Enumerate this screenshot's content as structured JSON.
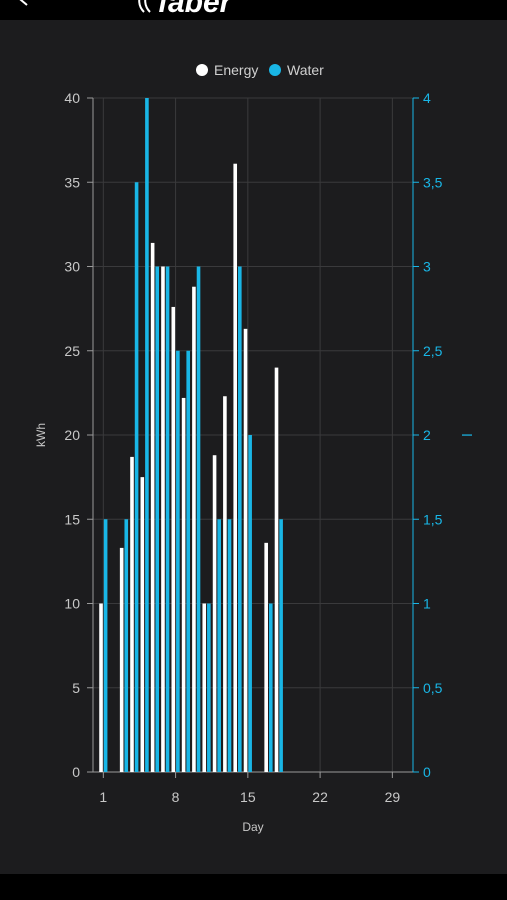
{
  "header": {
    "brand_logo_text": "faber",
    "back_icon": "chevron-left-icon"
  },
  "colors": {
    "background": "#1c1c1e",
    "energy": "#ffffff",
    "water": "#19b6e6",
    "axis_text": "#c8c8c8",
    "grid": "#3a3a3c"
  },
  "chart_data": {
    "type": "bar",
    "legend": {
      "position": "top-center",
      "entries": [
        "Energy",
        "Water"
      ]
    },
    "xlabel": "Day",
    "ylabel_left": "kWh",
    "ylabel_right": "l",
    "x_ticks": [
      "1",
      "8",
      "15",
      "22",
      "29"
    ],
    "y_left_ticks": [
      "0",
      "5",
      "10",
      "15",
      "20",
      "25",
      "30",
      "35",
      "40"
    ],
    "y_right_ticks": [
      "0",
      "0,5",
      "1",
      "1,5",
      "2",
      "2,5",
      "3",
      "3,5",
      "4"
    ],
    "xlim": [
      0,
      31
    ],
    "ylim_left": [
      0,
      40
    ],
    "ylim_right": [
      0,
      4
    ],
    "grid": true,
    "days": [
      1,
      2,
      3,
      4,
      5,
      6,
      7,
      8,
      9,
      10,
      11,
      12,
      13,
      14,
      15,
      16,
      17,
      18,
      19
    ],
    "series": [
      {
        "name": "Energy",
        "axis": "left",
        "values": [
          10,
          0,
          13.3,
          18.7,
          17.5,
          31.4,
          30,
          27.6,
          22.2,
          28.8,
          10,
          18.8,
          22.3,
          36.1,
          26.3,
          0,
          13.6,
          24,
          0
        ]
      },
      {
        "name": "Water",
        "axis": "right",
        "values": [
          1.5,
          0,
          1.5,
          3.5,
          4,
          3,
          3,
          2.5,
          2.5,
          3,
          1,
          1.5,
          1.5,
          3,
          2,
          0,
          1,
          1.5,
          0
        ]
      }
    ]
  }
}
